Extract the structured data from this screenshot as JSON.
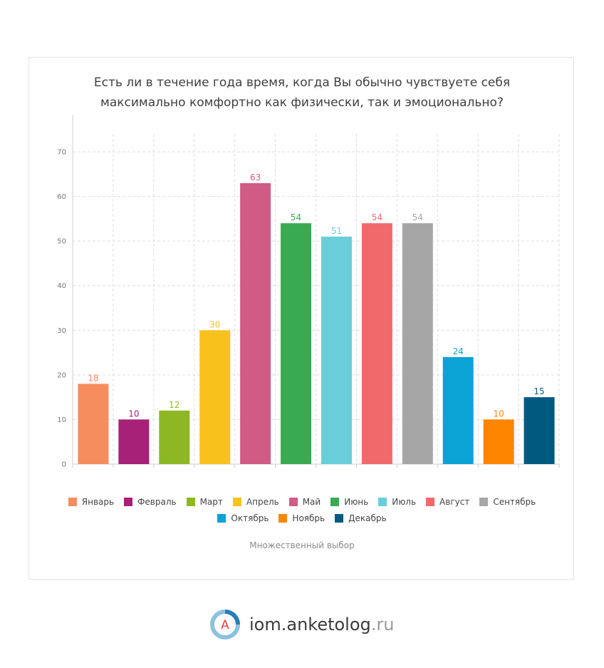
{
  "chart_data": {
    "type": "bar",
    "title_lines": [
      "Есть ли в течение года время, когда Вы обычно чувствуете себя",
      "максимально комфортно как физически, так и эмоционально?"
    ],
    "categories": [
      "Январь",
      "Февраль",
      "Март",
      "Апрель",
      "Май",
      "Июнь",
      "Июль",
      "Август",
      "Сентябрь",
      "Октябрь",
      "Ноябрь",
      "Декабрь"
    ],
    "values": [
      18,
      10,
      12,
      30,
      63,
      54,
      51,
      54,
      54,
      24,
      10,
      15
    ],
    "colors": [
      "#f58d5e",
      "#a62177",
      "#8db823",
      "#f9c11c",
      "#d05b85",
      "#3aaa52",
      "#68cfd9",
      "#f06a6b",
      "#a6a6a6",
      "#0ba2d6",
      "#fe8500",
      "#005a80"
    ],
    "yticks": [
      0,
      10,
      20,
      30,
      40,
      50,
      60,
      70
    ],
    "ylim": [
      0,
      74
    ],
    "xlabel": "",
    "ylabel": "",
    "grid": true,
    "legend_position": "bottom",
    "subtitle": "Множественный выбор"
  },
  "brand": {
    "logo_letter": "A",
    "name": "iom.anketolog",
    "domain": ".ru",
    "colors": {
      "blue": "#2c7db5",
      "light_blue": "#8cc1e0",
      "red": "#e8403c"
    }
  }
}
